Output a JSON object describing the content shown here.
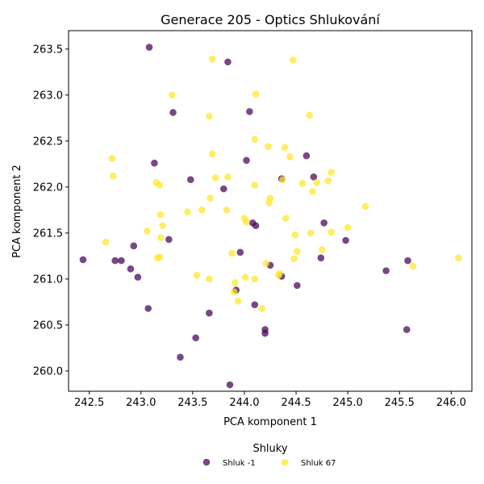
{
  "chart_data": {
    "type": "scatter",
    "title": "Generace 205 - Optics Shlukování",
    "xlabel": "PCA komponent 1",
    "ylabel": "PCA komponent 2",
    "xlim": [
      242.3,
      246.2
    ],
    "ylim": [
      259.78,
      263.7
    ],
    "xticks": [
      "242.5",
      "243.0",
      "243.5",
      "244.0",
      "244.5",
      "245.0",
      "245.5",
      "246.0"
    ],
    "yticks": [
      "260.0",
      "260.5",
      "261.0",
      "261.5",
      "262.0",
      "262.5",
      "263.0",
      "263.5"
    ],
    "grid": false,
    "legend": {
      "title": "Shluky",
      "placement": "bottom-center"
    },
    "series": [
      {
        "name": "Shluk -1",
        "color": "#440154",
        "points": [
          [
            243.08,
            263.52
          ],
          [
            243.84,
            263.36
          ],
          [
            243.31,
            262.81
          ],
          [
            244.05,
            262.82
          ],
          [
            244.6,
            262.34
          ],
          [
            243.13,
            262.26
          ],
          [
            244.02,
            262.29
          ],
          [
            243.48,
            262.08
          ],
          [
            244.36,
            262.09
          ],
          [
            244.67,
            262.11
          ],
          [
            243.8,
            261.98
          ],
          [
            244.08,
            261.61
          ],
          [
            244.11,
            261.58
          ],
          [
            244.77,
            261.61
          ],
          [
            242.44,
            261.21
          ],
          [
            242.75,
            261.2
          ],
          [
            242.81,
            261.2
          ],
          [
            242.93,
            261.36
          ],
          [
            243.27,
            261.43
          ],
          [
            243.96,
            261.29
          ],
          [
            244.98,
            261.42
          ],
          [
            245.37,
            261.09
          ],
          [
            245.58,
            261.2
          ],
          [
            244.74,
            261.23
          ],
          [
            244.25,
            261.15
          ],
          [
            242.9,
            261.11
          ],
          [
            242.97,
            261.02
          ],
          [
            243.92,
            260.88
          ],
          [
            244.36,
            261.03
          ],
          [
            244.51,
            260.93
          ],
          [
            243.07,
            260.68
          ],
          [
            244.1,
            260.72
          ],
          [
            243.66,
            260.63
          ],
          [
            244.2,
            260.45
          ],
          [
            244.2,
            260.41
          ],
          [
            245.57,
            260.45
          ],
          [
            243.53,
            260.36
          ],
          [
            243.38,
            260.15
          ],
          [
            243.86,
            259.85
          ]
        ]
      },
      {
        "name": "Shluk 67",
        "color": "#fde725",
        "points": [
          [
            243.69,
            263.39
          ],
          [
            244.47,
            263.38
          ],
          [
            243.3,
            263.0
          ],
          [
            244.11,
            263.01
          ],
          [
            243.66,
            262.77
          ],
          [
            244.63,
            262.78
          ],
          [
            244.1,
            262.52
          ],
          [
            244.39,
            262.43
          ],
          [
            244.23,
            262.44
          ],
          [
            242.72,
            262.31
          ],
          [
            243.69,
            262.36
          ],
          [
            244.44,
            262.33
          ],
          [
            242.73,
            262.12
          ],
          [
            243.72,
            262.1
          ],
          [
            243.84,
            262.11
          ],
          [
            244.37,
            262.08
          ],
          [
            243.15,
            262.05
          ],
          [
            243.18,
            262.02
          ],
          [
            244.1,
            262.02
          ],
          [
            244.56,
            262.04
          ],
          [
            244.7,
            262.05
          ],
          [
            244.81,
            262.07
          ],
          [
            244.84,
            262.16
          ],
          [
            244.66,
            261.95
          ],
          [
            243.67,
            261.88
          ],
          [
            244.25,
            261.88
          ],
          [
            244.24,
            261.83
          ],
          [
            243.59,
            261.75
          ],
          [
            243.45,
            261.73
          ],
          [
            243.83,
            261.75
          ],
          [
            245.17,
            261.79
          ],
          [
            243.19,
            261.7
          ],
          [
            244.0,
            261.66
          ],
          [
            244.02,
            261.62
          ],
          [
            244.4,
            261.66
          ],
          [
            243.21,
            261.58
          ],
          [
            245.0,
            261.56
          ],
          [
            243.06,
            261.52
          ],
          [
            244.49,
            261.48
          ],
          [
            244.64,
            261.5
          ],
          [
            244.84,
            261.51
          ],
          [
            243.19,
            261.45
          ],
          [
            242.66,
            261.4
          ],
          [
            243.88,
            261.28
          ],
          [
            244.51,
            261.3
          ],
          [
            244.75,
            261.32
          ],
          [
            243.16,
            261.23
          ],
          [
            243.18,
            261.24
          ],
          [
            244.48,
            261.22
          ],
          [
            244.21,
            261.17
          ],
          [
            245.63,
            261.14
          ],
          [
            246.07,
            261.23
          ],
          [
            243.54,
            261.04
          ],
          [
            243.66,
            261.0
          ],
          [
            244.01,
            261.02
          ],
          [
            244.1,
            261.0
          ],
          [
            244.33,
            261.04
          ],
          [
            244.34,
            261.06
          ],
          [
            243.91,
            260.96
          ],
          [
            243.9,
            260.86
          ],
          [
            243.94,
            260.76
          ],
          [
            244.17,
            260.68
          ]
        ]
      }
    ]
  }
}
